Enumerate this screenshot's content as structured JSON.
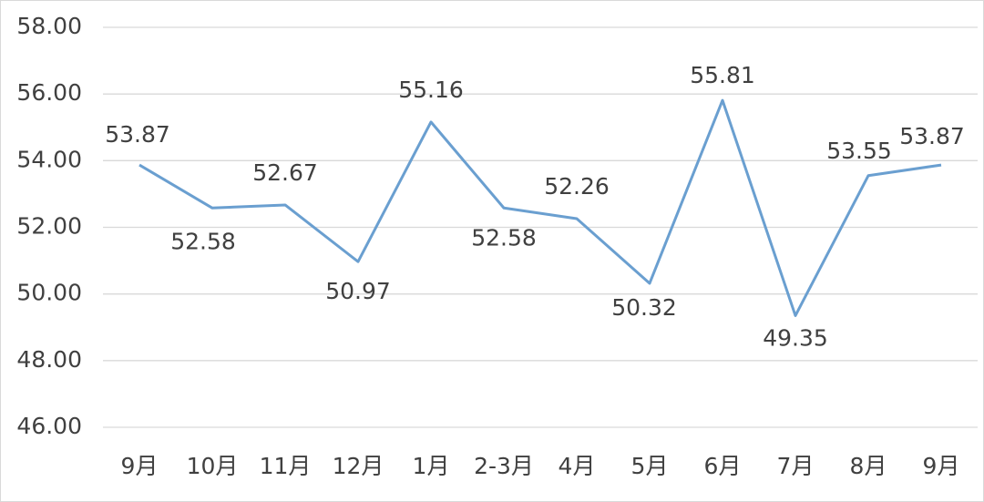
{
  "chart_data": {
    "type": "line",
    "categories": [
      "9月",
      "10月",
      "11月",
      "12月",
      "1月",
      "2-3月",
      "4月",
      "5月",
      "6月",
      "7月",
      "8月",
      "9月"
    ],
    "values": [
      53.87,
      52.58,
      52.67,
      50.97,
      55.16,
      52.58,
      52.26,
      50.32,
      55.81,
      49.35,
      53.55,
      53.87
    ],
    "color": "#6a9fd0",
    "ylim": [
      46,
      58
    ],
    "yticks": [
      {
        "value": 46,
        "label": "46.00"
      },
      {
        "value": 48,
        "label": "48.00"
      },
      {
        "value": 50,
        "label": "50.00"
      },
      {
        "value": 52,
        "label": "52.00"
      },
      {
        "value": 54,
        "label": "54.00"
      },
      {
        "value": 56,
        "label": "56.00"
      },
      {
        "value": 58,
        "label": "58.00"
      }
    ],
    "grid": true
  }
}
